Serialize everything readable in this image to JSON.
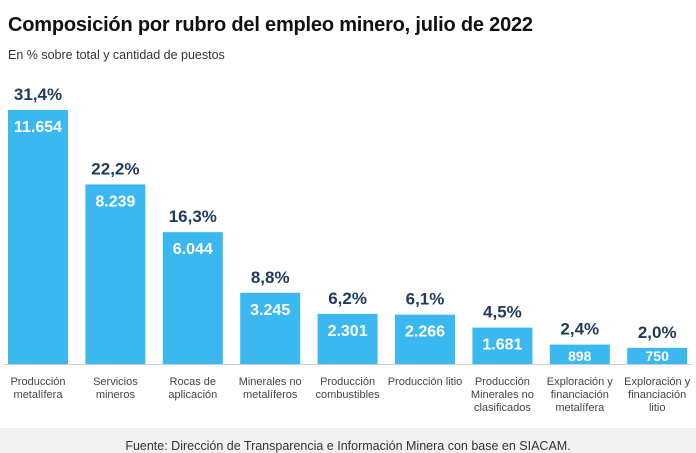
{
  "chart_data": {
    "type": "bar",
    "title": "Composición por rubro del empleo minero, julio de 2022",
    "subtitle": "En % sobre total y cantidad de puestos",
    "categories": [
      [
        "Producción",
        "metalífera"
      ],
      [
        "Servicios",
        "mineros"
      ],
      [
        "Rocas de",
        "aplicación"
      ],
      [
        "Minerales no",
        "metalíferos"
      ],
      [
        "Producción",
        "combustibles"
      ],
      [
        "Producción litio"
      ],
      [
        "Producción",
        "Minerales no",
        "clasificados"
      ],
      [
        "Exploración y",
        "financiación",
        "metalífera"
      ],
      [
        "Exploración y",
        "financiación",
        "litio"
      ]
    ],
    "series": [
      {
        "values": [
          31.4,
          22.2,
          16.3,
          8.8,
          6.2,
          6.1,
          4.5,
          2.4,
          2.0
        ]
      }
    ],
    "percent_labels": [
      "31,4%",
      "22,2%",
      "16,3%",
      "8,8%",
      "6,2%",
      "6,1%",
      "4,5%",
      "2,4%",
      "2,0%"
    ],
    "count_labels": [
      "11.654",
      "8.239",
      "6.044",
      "3.245",
      "2.301",
      "2.266",
      "1.681",
      "898",
      "750"
    ],
    "xlabel": "",
    "ylabel": "",
    "ylim": [
      0,
      31.4
    ],
    "grid": false,
    "legend": "none",
    "colors": {
      "bar": "#3cb8f0",
      "percent_text": "#1f3a5c",
      "count_text": "#ffffff",
      "baseline": "#cfcfcf",
      "category_text": "#444444"
    }
  },
  "footer": {
    "source": "Fuente: Dirección de Transparencia e Información Minera con base en SIACAM."
  }
}
